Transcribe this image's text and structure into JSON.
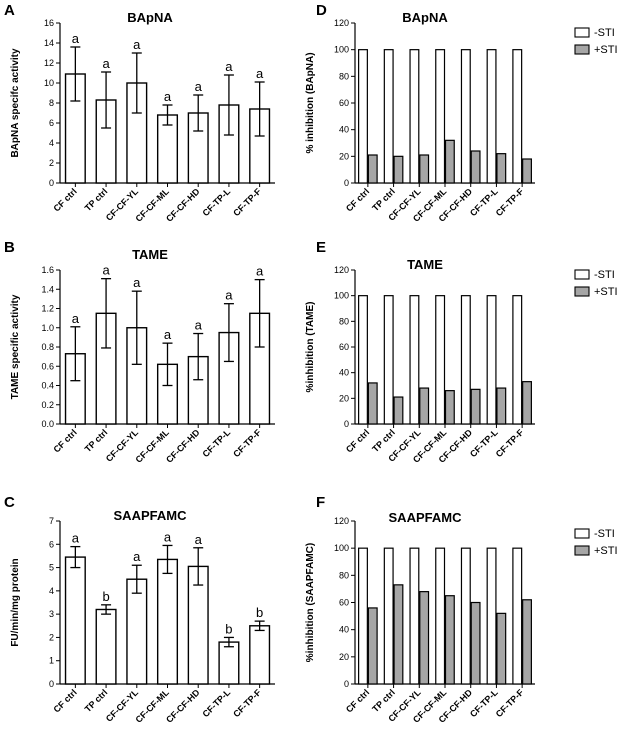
{
  "figure": {
    "panels": [
      {
        "letter": "A"
      },
      {
        "letter": "B"
      },
      {
        "letter": "C"
      },
      {
        "letter": "D"
      },
      {
        "letter": "E"
      },
      {
        "letter": "F"
      }
    ]
  },
  "colors": {
    "bar_fill": "#ffffff",
    "sti_fill": "#a6a6a6",
    "stroke": "#000000"
  },
  "chart_data": [
    {
      "panel": "A",
      "type": "bar",
      "title": "BApNA",
      "xlabel": "",
      "ylabel": "BApNA specifc activity",
      "categories": [
        "CF ctrl",
        "TP ctrl",
        "CF-CF-YL",
        "CF-CF-ML",
        "CF-CF-HD",
        "CF-TP-L",
        "CF-TP-F"
      ],
      "values": [
        10.9,
        8.3,
        10.0,
        6.8,
        7.0,
        7.8,
        7.4
      ],
      "errors": [
        2.7,
        2.8,
        3.0,
        1.0,
        1.8,
        3.0,
        2.7
      ],
      "significance": [
        "a",
        "a",
        "a",
        "a",
        "a",
        "a",
        "a"
      ],
      "ylim": [
        0,
        16
      ],
      "yticks": [
        "0",
        "2",
        "4",
        "6",
        "8",
        "10",
        "12",
        "14",
        "16"
      ]
    },
    {
      "panel": "B",
      "type": "bar",
      "title": "TAME",
      "xlabel": "",
      "ylabel": "TAME specific activity",
      "categories": [
        "CF ctrl",
        "TP ctrl",
        "CF-CF-YL",
        "CF-CF-ML",
        "CF-CF-HD",
        "CF-TP-L",
        "CF-TP-F"
      ],
      "values": [
        0.73,
        1.15,
        1.0,
        0.62,
        0.7,
        0.95,
        1.15
      ],
      "errors": [
        0.28,
        0.36,
        0.38,
        0.22,
        0.24,
        0.3,
        0.35
      ],
      "significance": [
        "a",
        "a",
        "a",
        "a",
        "a",
        "a",
        "a"
      ],
      "ylim": [
        0,
        1.6
      ],
      "yticks": [
        "0.0",
        "0.2",
        "0.4",
        "0.6",
        "0.8",
        "1.0",
        "1.2",
        "1.4",
        "1.6"
      ]
    },
    {
      "panel": "C",
      "type": "bar",
      "title": "SAAPFAMC",
      "xlabel": "",
      "ylabel": "FU/min/mg protein",
      "categories": [
        "CF ctrl",
        "TP ctrl",
        "CF-CF-YL",
        "CF-CF-ML",
        "CF-CF-HD",
        "CF-TP-L",
        "CF-TP-F"
      ],
      "values": [
        5.45,
        3.2,
        4.5,
        5.35,
        5.05,
        1.8,
        2.5
      ],
      "errors": [
        0.45,
        0.2,
        0.6,
        0.6,
        0.8,
        0.2,
        0.2
      ],
      "significance": [
        "a",
        "b",
        "a",
        "a",
        "a",
        "b",
        "b"
      ],
      "ylim": [
        0,
        7
      ],
      "yticks": [
        "0",
        "1",
        "2",
        "3",
        "4",
        "5",
        "6",
        "7"
      ]
    },
    {
      "panel": "D",
      "type": "bar",
      "title": "BApNA",
      "xlabel": "",
      "ylabel": "% inhibition (BApNA)",
      "categories": [
        "CF ctrl",
        "TP ctrl",
        "CF-CF-YL",
        "CF-CF-ML",
        "CF-CF-HD",
        "CF-TP-L",
        "CF-TP-F"
      ],
      "series": [
        {
          "name": "-STI",
          "values": [
            100,
            100,
            100,
            100,
            100,
            100,
            100
          ]
        },
        {
          "name": "+STI",
          "values": [
            21,
            20,
            21,
            32,
            24,
            22,
            18
          ]
        }
      ],
      "ylim": [
        0,
        120
      ],
      "yticks": [
        "0",
        "20",
        "40",
        "60",
        "80",
        "100",
        "120"
      ],
      "legend": "top-right"
    },
    {
      "panel": "E",
      "type": "bar",
      "title": "TAME",
      "xlabel": "",
      "ylabel": "%inhibition (TAME)",
      "categories": [
        "CF ctrl",
        "TP ctrl",
        "CF-CF-YL",
        "CF-CF-ML",
        "CF-CF-HD",
        "CF-TP-L",
        "CF-TP-F"
      ],
      "series": [
        {
          "name": "-STI",
          "values": [
            100,
            100,
            100,
            100,
            100,
            100,
            100
          ]
        },
        {
          "name": "+STI",
          "values": [
            32,
            21,
            28,
            26,
            27,
            28,
            33
          ]
        }
      ],
      "ylim": [
        0,
        120
      ],
      "yticks": [
        "0",
        "20",
        "40",
        "60",
        "80",
        "100",
        "120"
      ],
      "legend": "top-right"
    },
    {
      "panel": "F",
      "type": "bar",
      "title": "SAAPFAMC",
      "xlabel": "",
      "ylabel": "%inhibition (SAAPFAMC)",
      "categories": [
        "CF ctrl",
        "TP ctrl",
        "CF-CF-YL",
        "CF-CF-ML",
        "CF-CF-HD",
        "CF-TP-L",
        "CF-TP-F"
      ],
      "series": [
        {
          "name": "-STI",
          "values": [
            100,
            100,
            100,
            100,
            100,
            100,
            100
          ]
        },
        {
          "name": "+STI",
          "values": [
            56,
            73,
            68,
            65,
            60,
            52,
            62
          ]
        }
      ],
      "ylim": [
        0,
        120
      ],
      "yticks": [
        "0",
        "20",
        "40",
        "60",
        "80",
        "100",
        "120"
      ],
      "legend": "right"
    }
  ]
}
